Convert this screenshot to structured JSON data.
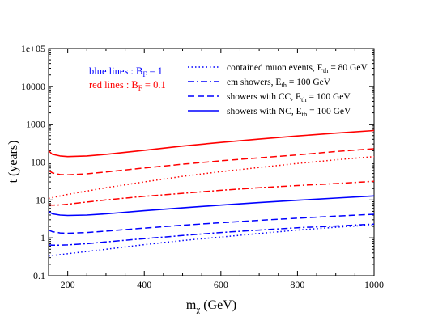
{
  "chart_data": {
    "type": "line",
    "xlabel_main": "m",
    "xlabel_sub": "χ",
    "xlabel_unit": " (GeV)",
    "ylabel": "t (years)",
    "x_ticks": [
      200,
      400,
      600,
      800,
      1000
    ],
    "y_tick_labels": [
      "0.1",
      "1",
      "10",
      "100",
      "1000",
      "10000",
      "1e+05"
    ],
    "xlim": [
      150,
      1000
    ],
    "ylim": [
      0.1,
      100000
    ],
    "yscale": "log",
    "grid": false,
    "colors": {
      "blue": "#0000ff",
      "red": "#ff0000",
      "axis": "#000000"
    },
    "color_key": [
      {
        "color": "blue",
        "prefix": "blue lines : B",
        "sub": "F",
        "suffix": " = 1"
      },
      {
        "color": "red",
        "prefix": "red lines   : B",
        "sub": "F",
        "suffix": " = 0.1"
      }
    ],
    "legend": [
      {
        "style": "dotted",
        "prefix": "contained muon events, E",
        "sub": "th",
        "suffix": " = 80 GeV"
      },
      {
        "style": "dashdot",
        "prefix": "em showers, E",
        "sub": "th",
        "suffix": " = 100 GeV"
      },
      {
        "style": "dashed",
        "prefix": "showers with CC, E",
        "sub": "th",
        "suffix": " = 100 GeV"
      },
      {
        "style": "solid",
        "prefix": "showers with NC,  E",
        "sub": "th",
        "suffix": " = 100 GeV"
      }
    ],
    "series": [
      {
        "color": "red",
        "style": "solid",
        "x": [
          150,
          160,
          180,
          200,
          250,
          300,
          400,
          500,
          600,
          700,
          800,
          900,
          1000
        ],
        "y": [
          200,
          160,
          145,
          140,
          145,
          160,
          205,
          265,
          330,
          405,
          490,
          580,
          680
        ]
      },
      {
        "color": "red",
        "style": "dashed",
        "x": [
          150,
          160,
          180,
          200,
          250,
          300,
          400,
          500,
          600,
          700,
          800,
          900,
          1000
        ],
        "y": [
          60,
          52,
          47,
          46,
          49,
          55,
          70,
          88,
          108,
          130,
          155,
          190,
          225
        ]
      },
      {
        "color": "red",
        "style": "dotted",
        "x": [
          150,
          200,
          300,
          400,
          500,
          600,
          700,
          800,
          900,
          1000
        ],
        "y": [
          11,
          14,
          21,
          30,
          42,
          56,
          72,
          92,
          115,
          140
        ]
      },
      {
        "color": "red",
        "style": "dashdot",
        "x": [
          150,
          160,
          180,
          200,
          250,
          300,
          400,
          500,
          600,
          700,
          800,
          900,
          1000
        ],
        "y": [
          7.5,
          7.3,
          7.4,
          7.7,
          8.8,
          10,
          12.5,
          15,
          18,
          21,
          24,
          27,
          31
        ]
      },
      {
        "color": "blue",
        "style": "solid",
        "x": [
          150,
          160,
          180,
          200,
          250,
          300,
          400,
          500,
          600,
          700,
          800,
          900,
          1000
        ],
        "y": [
          5.0,
          4.3,
          4.0,
          3.9,
          4.0,
          4.3,
          5.2,
          6.2,
          7.3,
          8.5,
          9.8,
          11.2,
          12.8
        ]
      },
      {
        "color": "blue",
        "style": "dashed",
        "x": [
          150,
          160,
          180,
          200,
          250,
          300,
          400,
          500,
          600,
          700,
          800,
          900,
          1000
        ],
        "y": [
          1.6,
          1.45,
          1.35,
          1.32,
          1.38,
          1.5,
          1.8,
          2.15,
          2.5,
          2.9,
          3.3,
          3.75,
          4.2
        ]
      },
      {
        "color": "blue",
        "style": "dashdot",
        "x": [
          150,
          160,
          180,
          200,
          250,
          300,
          400,
          500,
          600,
          700,
          800,
          900,
          1000
        ],
        "y": [
          0.65,
          0.64,
          0.64,
          0.65,
          0.7,
          0.78,
          0.95,
          1.15,
          1.38,
          1.6,
          1.85,
          2.05,
          2.3
        ]
      },
      {
        "color": "blue",
        "style": "dotted",
        "x": [
          150,
          200,
          300,
          400,
          500,
          600,
          700,
          800,
          900,
          1000
        ],
        "y": [
          0.33,
          0.38,
          0.5,
          0.66,
          0.85,
          1.05,
          1.3,
          1.6,
          1.9,
          2.2
        ]
      }
    ]
  }
}
